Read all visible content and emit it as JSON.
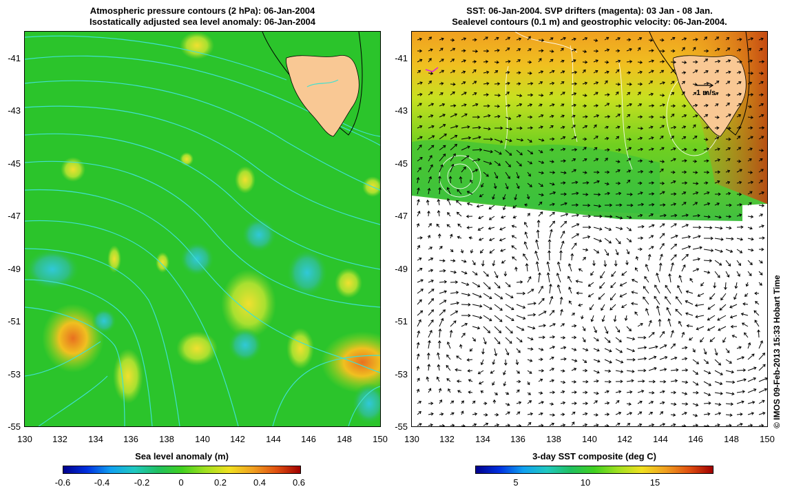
{
  "left_panel": {
    "title_line1": "Atmospheric pressure contours (2 hPa): 06-Jan-2004",
    "title_line2": "Isostatically adjusted sea level anomaly: 06-Jan-2004",
    "colorbar_label": "Sea level anomaly (m)",
    "colorbar_ticks": [
      "-0.6",
      "-0.4",
      "-0.2",
      "0",
      "0.2",
      "0.4",
      "0.6"
    ]
  },
  "right_panel": {
    "title_line1": "SST: 06-Jan-2004. SVP drifters (magenta): 03 Jan - 08 Jan.",
    "title_line2": "Sealevel contours (0.1 m) and geostrophic velocity: 06-Jan-2004.",
    "colorbar_label": "3-day SST composite (deg C)",
    "colorbar_ticks": [
      "5",
      "10",
      "15"
    ],
    "scale_arrow_label": "1 m/s"
  },
  "axes": {
    "y_ticks": [
      "-41",
      "-43",
      "-45",
      "-47",
      "-49",
      "-51",
      "-53",
      "-55"
    ],
    "x_ticks": [
      "130",
      "132",
      "134",
      "136",
      "138",
      "140",
      "142",
      "144",
      "146",
      "148",
      "150"
    ],
    "lon_range": [
      130,
      150
    ],
    "lat_range": [
      -40.3,
      -55
    ]
  },
  "credit": "© IMOS 09-Feb-2013 15:33 Hobart Time",
  "colors": {
    "land": "#f9c894",
    "contour_cyan": "#40e0d0",
    "background_green": "#2bc42b",
    "sst_orange": "#f0a020"
  }
}
